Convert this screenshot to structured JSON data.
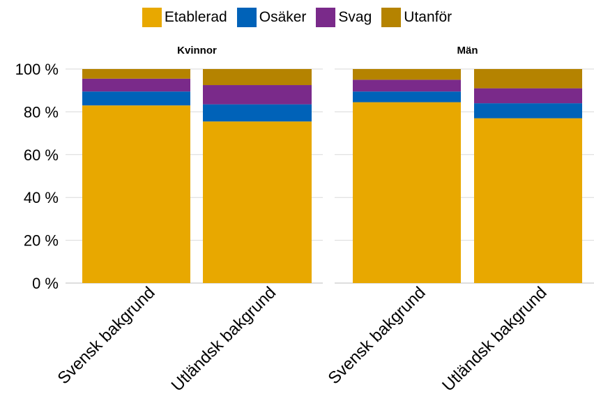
{
  "chart_data": {
    "type": "bar",
    "stacked": true,
    "legend_position": "top",
    "grid": true,
    "ylim": [
      0,
      100
    ],
    "y_ticks": [
      "0 %",
      "20 %",
      "40 %",
      "60 %",
      "80 %",
      "100 %"
    ],
    "categories": [
      "Svensk bakgrund",
      "Utländsk bakgrund"
    ],
    "colors": {
      "Etablerad": "#E8A800",
      "Osäker": "#0062B8",
      "Svag": "#7A2A8A",
      "Utanför": "#B58300"
    },
    "legend": [
      "Etablerad",
      "Osäker",
      "Svag",
      "Utanför"
    ],
    "panels": [
      {
        "title": "Kvinnor",
        "series": [
          {
            "name": "Etablerad",
            "values": [
              83,
              75.5
            ]
          },
          {
            "name": "Osäker",
            "values": [
              6.5,
              8
            ]
          },
          {
            "name": "Svag",
            "values": [
              6,
              9
            ]
          },
          {
            "name": "Utanför",
            "values": [
              4.5,
              7.5
            ]
          }
        ]
      },
      {
        "title": "Män",
        "series": [
          {
            "name": "Etablerad",
            "values": [
              84.5,
              77
            ]
          },
          {
            "name": "Osäker",
            "values": [
              5,
              7
            ]
          },
          {
            "name": "Svag",
            "values": [
              5.5,
              7
            ]
          },
          {
            "name": "Utanför",
            "values": [
              5,
              9
            ]
          }
        ]
      }
    ]
  }
}
